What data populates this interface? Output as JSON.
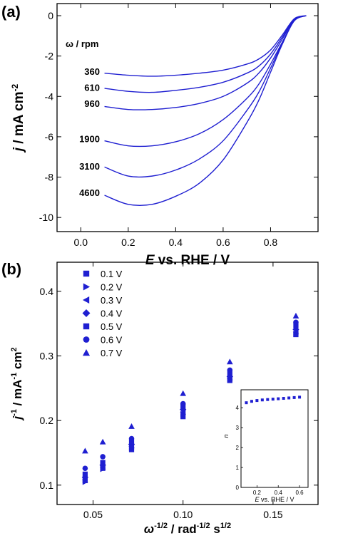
{
  "colors": {
    "series": "#1f1fd1",
    "axis": "#000000"
  },
  "chart_data": [
    {
      "panel_label": "(a)",
      "type": "line",
      "xlabel_italic": "E",
      "xlabel_rest": " vs. RHE / V",
      "ylabel_italic": "j",
      "ylabel_rest": " / mA cm",
      "ylabel_sup": "-2",
      "xlim": [
        -0.1,
        1.0
      ],
      "ylim": [
        -10.7,
        0.6
      ],
      "xticks": [
        0.0,
        0.2,
        0.4,
        0.6,
        0.8
      ],
      "xtick_labels": [
        "0.0",
        "0.2",
        "0.4",
        "0.6",
        "0.8"
      ],
      "yticks": [
        0,
        -2,
        -4,
        -6,
        -8,
        -10
      ],
      "ytick_labels": [
        "0",
        "-2",
        "-4",
        "-6",
        "-8",
        "-10"
      ],
      "legend_title": "ω / rpm",
      "series": [
        {
          "name": "360",
          "label_y": -2.75,
          "x": [
            0.1,
            0.2,
            0.3,
            0.4,
            0.5,
            0.6,
            0.7,
            0.75,
            0.8,
            0.85,
            0.9,
            0.95
          ],
          "y": [
            -2.85,
            -2.95,
            -3.0,
            -2.95,
            -2.85,
            -2.7,
            -2.4,
            -2.15,
            -1.7,
            -0.95,
            -0.15,
            0.0
          ]
        },
        {
          "name": "610",
          "label_y": -3.55,
          "x": [
            0.1,
            0.2,
            0.3,
            0.4,
            0.5,
            0.6,
            0.7,
            0.75,
            0.8,
            0.85,
            0.9,
            0.95
          ],
          "y": [
            -3.6,
            -3.75,
            -3.8,
            -3.7,
            -3.55,
            -3.3,
            -2.85,
            -2.5,
            -1.9,
            -1.05,
            -0.2,
            0.0
          ]
        },
        {
          "name": "960",
          "label_y": -4.35,
          "x": [
            0.1,
            0.2,
            0.3,
            0.4,
            0.5,
            0.6,
            0.7,
            0.75,
            0.8,
            0.85,
            0.9,
            0.95
          ],
          "y": [
            -4.5,
            -4.65,
            -4.65,
            -4.55,
            -4.35,
            -4.0,
            -3.35,
            -2.85,
            -2.1,
            -1.15,
            -0.2,
            0.0
          ]
        },
        {
          "name": "1900",
          "label_y": -6.1,
          "x": [
            0.1,
            0.2,
            0.3,
            0.4,
            0.5,
            0.6,
            0.7,
            0.75,
            0.8,
            0.85,
            0.9,
            0.95
          ],
          "y": [
            -6.2,
            -6.45,
            -6.45,
            -6.25,
            -5.85,
            -5.15,
            -4.1,
            -3.4,
            -2.4,
            -1.3,
            -0.25,
            0.0
          ]
        },
        {
          "name": "3100",
          "label_y": -7.45,
          "x": [
            0.1,
            0.2,
            0.3,
            0.4,
            0.5,
            0.6,
            0.7,
            0.75,
            0.8,
            0.85,
            0.9,
            0.95
          ],
          "y": [
            -7.5,
            -7.95,
            -7.95,
            -7.65,
            -7.1,
            -6.2,
            -4.7,
            -3.8,
            -2.6,
            -1.35,
            -0.25,
            0.0
          ]
        },
        {
          "name": "4600",
          "label_y": -8.75,
          "x": [
            0.1,
            0.2,
            0.3,
            0.4,
            0.5,
            0.6,
            0.7,
            0.75,
            0.8,
            0.85,
            0.9,
            0.95
          ],
          "y": [
            -8.9,
            -9.35,
            -9.35,
            -8.95,
            -8.3,
            -7.15,
            -5.3,
            -4.2,
            -2.8,
            -1.4,
            -0.25,
            0.0
          ]
        }
      ]
    },
    {
      "panel_label": "(b)",
      "type": "scatter",
      "xlabel_main": "ω",
      "xlabel_sup1": "-1/2",
      "xlabel_mid": " / rad",
      "xlabel_sup2": "-1/2",
      "xlabel_end": " s",
      "xlabel_sup3": "1/2",
      "ylabel_italic": "j",
      "ylabel_sup1": "-1",
      "ylabel_mid": " / mA",
      "ylabel_sup2": "-1",
      "ylabel_end": " cm",
      "ylabel_sup3": "2",
      "xlim": [
        0.03,
        0.175
      ],
      "ylim": [
        0.07,
        0.445
      ],
      "xticks": [
        0.05,
        0.1,
        0.15
      ],
      "xtick_labels": [
        "0.05",
        "0.10",
        "0.15"
      ],
      "yticks": [
        0.1,
        0.2,
        0.3,
        0.4
      ],
      "ytick_labels": [
        "0.1",
        "0.2",
        "0.3",
        "0.4"
      ],
      "x": [
        0.0456,
        0.0554,
        0.0714,
        0.1,
        0.126,
        0.1627
      ],
      "series": [
        {
          "name": "0.1 V",
          "marker": "square",
          "values": [
            0.107,
            0.126,
            0.155,
            0.206,
            0.262,
            0.333
          ]
        },
        {
          "name": "0.2 V",
          "marker": "triangle-right",
          "values": [
            0.105,
            0.125,
            0.158,
            0.21,
            0.263,
            0.334
          ]
        },
        {
          "name": "0.3 V",
          "marker": "triangle-left",
          "values": [
            0.108,
            0.128,
            0.16,
            0.213,
            0.265,
            0.337
          ]
        },
        {
          "name": "0.4 V",
          "marker": "diamond",
          "values": [
            0.112,
            0.131,
            0.163,
            0.217,
            0.268,
            0.341
          ]
        },
        {
          "name": "0.5 V",
          "marker": "square",
          "values": [
            0.117,
            0.135,
            0.167,
            0.222,
            0.273,
            0.347
          ]
        },
        {
          "name": "0.6 V",
          "marker": "circle",
          "values": [
            0.126,
            0.144,
            0.172,
            0.226,
            0.278,
            0.352
          ]
        },
        {
          "name": "0.7 V",
          "marker": "triangle-up",
          "values": [
            0.153,
            0.167,
            0.191,
            0.242,
            0.291,
            0.362
          ]
        }
      ],
      "inset": {
        "type": "scatter",
        "xlabel_italic": "E",
        "xlabel_rest": " vs. RHE / V",
        "ylabel": "n",
        "xlim": [
          0.05,
          0.68
        ],
        "ylim": [
          0,
          4.9
        ],
        "xticks": [
          0.2,
          0.4,
          0.6
        ],
        "xtick_labels": [
          "0.2",
          "0.4",
          "0.6"
        ],
        "yticks": [
          0,
          1,
          2,
          3,
          4
        ],
        "ytick_labels": [
          "0",
          "1",
          "2",
          "3",
          "4"
        ],
        "x": [
          0.1,
          0.15,
          0.2,
          0.25,
          0.3,
          0.35,
          0.4,
          0.45,
          0.5,
          0.55,
          0.6
        ],
        "values": [
          4.25,
          4.32,
          4.36,
          4.39,
          4.41,
          4.43,
          4.45,
          4.47,
          4.49,
          4.51,
          4.53
        ]
      }
    }
  ]
}
